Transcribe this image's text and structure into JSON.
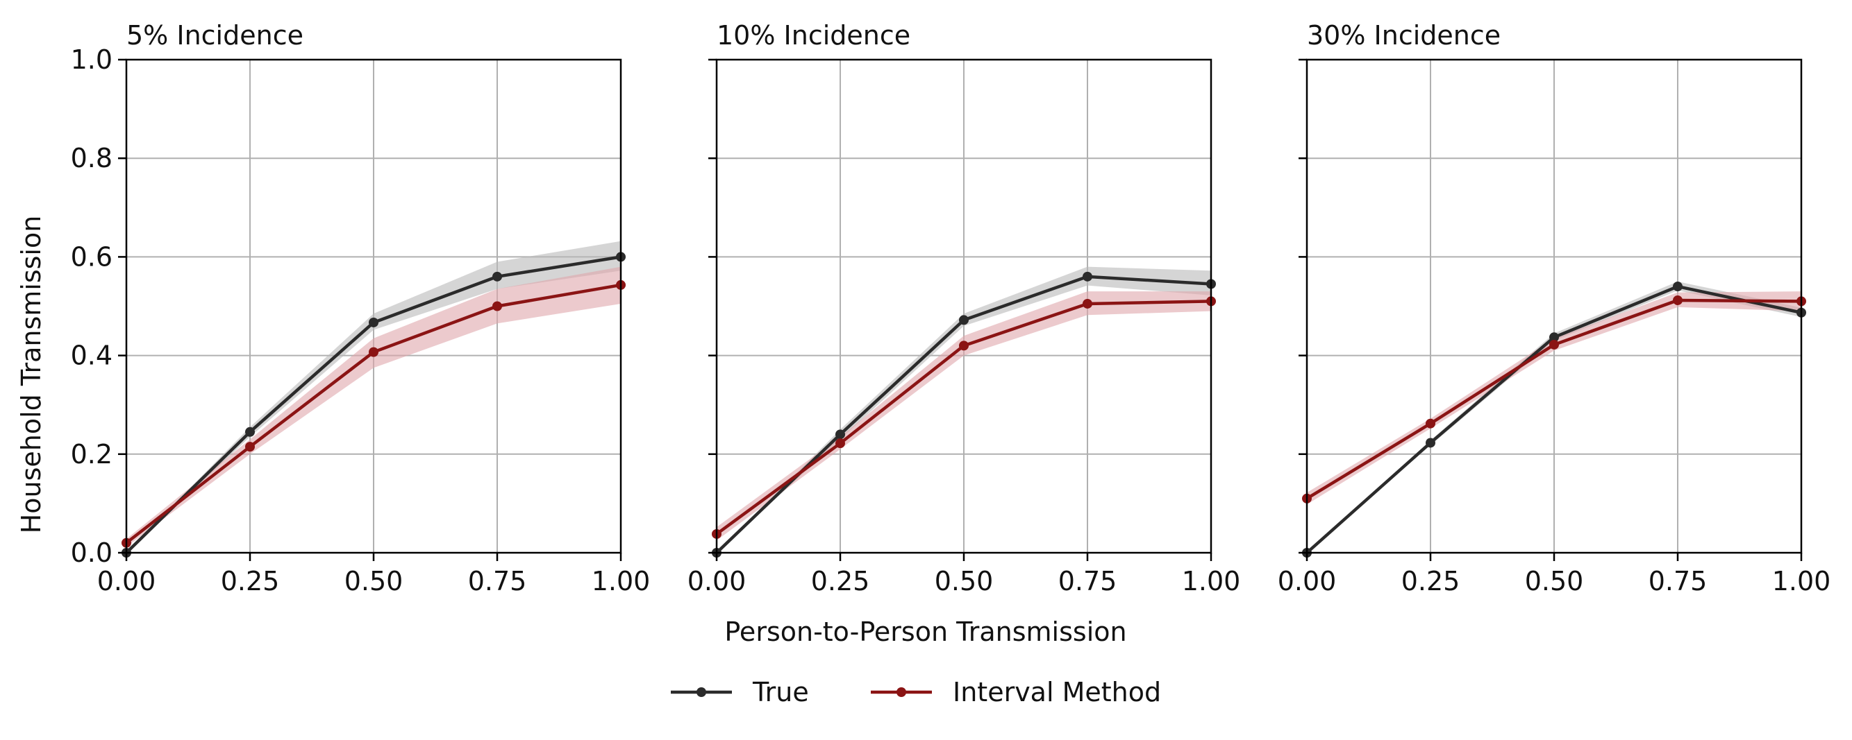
{
  "chart_data": [
    {
      "type": "line",
      "title": "5% Incidence",
      "x": [
        0.0,
        0.25,
        0.5,
        0.75,
        1.0
      ],
      "xlim": [
        0.0,
        1.0
      ],
      "ylim": [
        0.0,
        1.0
      ],
      "x_ticks": [
        "0.00",
        "0.25",
        "0.50",
        "0.75",
        "1.00"
      ],
      "y_ticks": [
        "0.0",
        "0.2",
        "0.4",
        "0.6",
        "0.8",
        "1.0"
      ],
      "y_tick_values": [
        0.0,
        0.2,
        0.4,
        0.6,
        0.8,
        1.0
      ],
      "ylabel": "Household Transmission",
      "grid": true,
      "series": [
        {
          "name": "True",
          "color": "#2b2b2b",
          "band_color": "#b9b9b9",
          "values": [
            0.0,
            0.245,
            0.467,
            0.56,
            0.6
          ],
          "lower": [
            0.0,
            0.235,
            0.452,
            0.535,
            0.572
          ],
          "upper": [
            0.0,
            0.255,
            0.485,
            0.59,
            0.632
          ]
        },
        {
          "name": "Interval Method",
          "color": "#8b1414",
          "band_color": "#e0a6ab",
          "values": [
            0.02,
            0.215,
            0.407,
            0.5,
            0.543
          ],
          "lower": [
            0.012,
            0.2,
            0.375,
            0.465,
            0.505
          ],
          "upper": [
            0.028,
            0.23,
            0.435,
            0.535,
            0.58
          ]
        }
      ]
    },
    {
      "type": "line",
      "title": "10% Incidence",
      "x": [
        0.0,
        0.25,
        0.5,
        0.75,
        1.0
      ],
      "xlim": [
        0.0,
        1.0
      ],
      "ylim": [
        0.0,
        1.0
      ],
      "x_ticks": [
        "0.00",
        "0.25",
        "0.50",
        "0.75",
        "1.00"
      ],
      "y_tick_values": [
        0.0,
        0.2,
        0.4,
        0.6,
        0.8,
        1.0
      ],
      "xlabel": "Person-to-Person Transmission",
      "grid": true,
      "series": [
        {
          "name": "True",
          "color": "#2b2b2b",
          "band_color": "#b9b9b9",
          "values": [
            0.0,
            0.24,
            0.472,
            0.56,
            0.545
          ],
          "lower": [
            0.0,
            0.23,
            0.46,
            0.542,
            0.522
          ],
          "upper": [
            0.0,
            0.25,
            0.485,
            0.58,
            0.572
          ]
        },
        {
          "name": "Interval Method",
          "color": "#8b1414",
          "band_color": "#e0a6ab",
          "values": [
            0.038,
            0.222,
            0.42,
            0.505,
            0.51
          ],
          "lower": [
            0.025,
            0.21,
            0.4,
            0.482,
            0.49
          ],
          "upper": [
            0.052,
            0.235,
            0.44,
            0.53,
            0.53
          ]
        }
      ]
    },
    {
      "type": "line",
      "title": "30% Incidence",
      "x": [
        0.0,
        0.25,
        0.5,
        0.75,
        1.0
      ],
      "xlim": [
        0.0,
        1.0
      ],
      "ylim": [
        0.0,
        1.0
      ],
      "x_ticks": [
        "0.00",
        "0.25",
        "0.50",
        "0.75",
        "1.00"
      ],
      "y_tick_values": [
        0.0,
        0.2,
        0.4,
        0.6,
        0.8,
        1.0
      ],
      "grid": true,
      "series": [
        {
          "name": "True",
          "color": "#2b2b2b",
          "band_color": "#b9b9b9",
          "values": [
            0.0,
            0.223,
            0.437,
            0.54,
            0.487
          ],
          "lower": [
            0.0,
            0.218,
            0.43,
            0.532,
            0.478
          ],
          "upper": [
            0.0,
            0.228,
            0.445,
            0.55,
            0.497
          ]
        },
        {
          "name": "Interval Method",
          "color": "#8b1414",
          "band_color": "#e0a6ab",
          "values": [
            0.11,
            0.262,
            0.422,
            0.512,
            0.51
          ],
          "lower": [
            0.098,
            0.252,
            0.41,
            0.498,
            0.49
          ],
          "upper": [
            0.122,
            0.272,
            0.435,
            0.528,
            0.53
          ]
        }
      ]
    }
  ],
  "legend": {
    "placement": "bottom-center",
    "items": [
      {
        "label": "True",
        "color": "#2b2b2b"
      },
      {
        "label": "Interval Method",
        "color": "#8b1414"
      }
    ]
  }
}
